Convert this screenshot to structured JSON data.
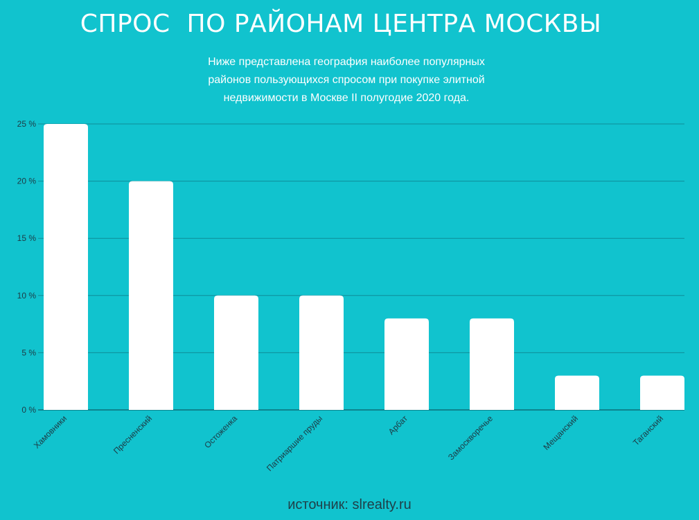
{
  "title": "СПРОС  ПО РАЙОНАМ ЦЕНТРА МОСКВЫ",
  "subtitle": "Ниже представлена география наиболее популярных районов пользующихся спросом при покупке элитной недвижимости в Москве II полугодие 2020 года.",
  "source": "источник: slrealty.ru",
  "colors": {
    "background": "#11c3ce",
    "bar": "#ffffff",
    "grid": "#0e8c98",
    "axis_text": "#1d3a44"
  },
  "chart_data": {
    "type": "bar",
    "categories": [
      "Хамовники",
      "Пресненский",
      "Остоженка",
      "Патриаршие пруды",
      "Арбат",
      "Замоскворечье",
      "Мещанский",
      "Таганский"
    ],
    "values": [
      25,
      20,
      10,
      10,
      8,
      8,
      3,
      3
    ],
    "ylim": [
      0,
      25
    ],
    "yticks": [
      "0 %",
      "5 %",
      "10 %",
      "15 %",
      "20 %",
      "25 %"
    ],
    "grid": true
  }
}
